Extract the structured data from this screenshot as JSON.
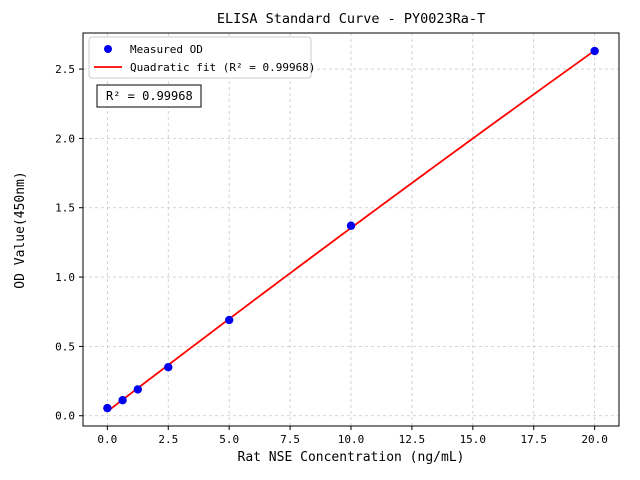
{
  "figure": {
    "background": "#ffffff"
  },
  "chart_data": {
    "type": "scatter",
    "title": "ELISA Standard Curve - PY0023Ra-T",
    "xlabel": "Rat NSE Concentration (ng/mL)",
    "ylabel": "OD Value(450nm)",
    "xlim": [
      -1.0,
      21.0
    ],
    "ylim": [
      -0.074,
      2.76
    ],
    "xticks": [
      0.0,
      2.5,
      5.0,
      7.5,
      10.0,
      12.5,
      15.0,
      17.5,
      20.0
    ],
    "yticks": [
      0.0,
      0.5,
      1.0,
      1.5,
      2.0,
      2.5
    ],
    "grid": true,
    "grid_style": "dashed",
    "grid_color": "#c8c8c8",
    "legend_position": "upper left",
    "annotation": "R² = 0.99968",
    "series": [
      {
        "name": "Measured OD",
        "type": "scatter",
        "marker": "circle",
        "color": "#0000ee",
        "x": [
          0.0,
          0.625,
          1.25,
          2.5,
          5.0,
          10.0,
          20.0
        ],
        "y": [
          0.055,
          0.112,
          0.19,
          0.35,
          0.69,
          1.37,
          2.63
        ]
      },
      {
        "name": "Quadratic fit (R² = 0.99968)",
        "type": "line",
        "fit": "quadratic",
        "color": "#ff0000",
        "x_range": [
          0.0,
          20.0
        ]
      }
    ]
  }
}
